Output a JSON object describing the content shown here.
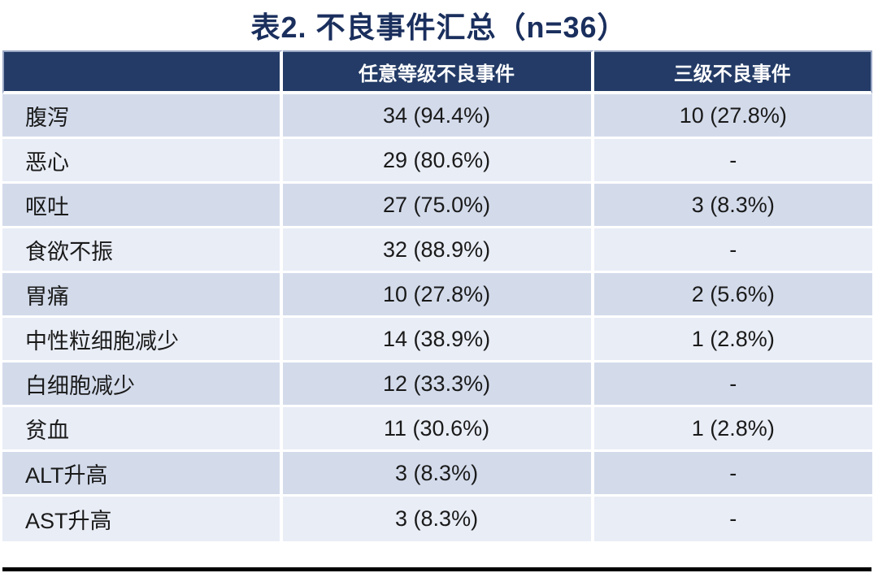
{
  "page": {
    "title": "表2. 不良事件汇总（n=36）"
  },
  "chart_data": {
    "type": "table",
    "title": "表2. 不良事件汇总（n=36）",
    "n": 36,
    "columns": [
      "",
      "任意等级不良事件",
      "三级不良事件"
    ],
    "rows": [
      [
        "腹泻",
        "34 (94.4%)",
        "10 (27.8%)"
      ],
      [
        "恶心",
        "29 (80.6%)",
        "-"
      ],
      [
        "呕吐",
        "27 (75.0%)",
        "3 (8.3%)"
      ],
      [
        "食欲不振",
        "32 (88.9%)",
        "-"
      ],
      [
        "胃痛",
        "10 (27.8%)",
        "2 (5.6%)"
      ],
      [
        "中性粒细胞减少",
        "14 (38.9%)",
        "1 (2.8%)"
      ],
      [
        "白细胞减少",
        "12 (33.3%)",
        "-"
      ],
      [
        "贫血",
        "11 (30.6%)",
        "1 (2.8%)"
      ],
      [
        "ALT升高",
        "3 (8.3%)",
        "-"
      ],
      [
        "AST升高",
        "3 (8.3%)",
        "-"
      ]
    ],
    "layout": {
      "row_banding": [
        "dark",
        "light"
      ],
      "value_alignment": "center",
      "label_alignment": "left"
    }
  },
  "colors": {
    "title": "#1A2F5D",
    "header_bg": "#233B66",
    "header_text": "#FFFFFF",
    "row_band_dark": "#D3DBEB",
    "row_band_light": "#E9EDF6",
    "body_text": "#1A1A1A",
    "bottom_bar": "#000000"
  }
}
